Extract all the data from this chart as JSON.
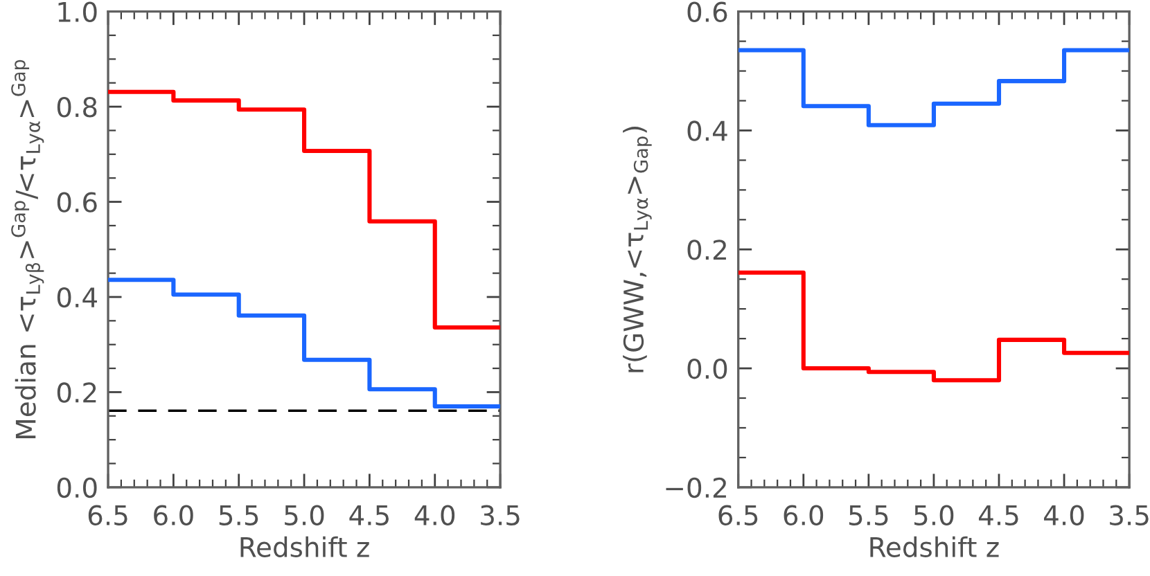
{
  "chart_data": [
    {
      "type": "step",
      "xlabel": "Redshift z",
      "ylabel": "Median <τ$_{Lyβ}$>$^{Gap}$/<τ$_{Lyα}$>$^{Gap}$",
      "xlim": [
        6.5,
        3.5
      ],
      "ylim": [
        0,
        1.0
      ],
      "xticks": [
        6.5,
        {
          "value": 6.0,
          "label": "6.0"
        },
        5.5,
        {
          "value": 5.0,
          "label": "5.0"
        },
        4.5,
        {
          "value": 4.0,
          "label": "4.0"
        },
        3.5,
        {
          "value": 6.4,
          "label": null
        },
        {
          "value": 6.3,
          "label": null
        },
        {
          "value": 6.2,
          "label": null
        },
        {
          "value": 6.1,
          "label": null
        },
        {
          "value": 5.9,
          "label": null
        },
        {
          "value": 5.8,
          "label": null
        },
        {
          "value": 5.7,
          "label": null
        },
        {
          "value": 5.6,
          "label": null
        },
        {
          "value": 5.4,
          "label": null
        },
        {
          "value": 5.3,
          "label": null
        },
        {
          "value": 5.2,
          "label": null
        },
        {
          "value": 5.1,
          "label": null
        },
        {
          "value": 4.9,
          "label": null
        },
        {
          "value": 4.8,
          "label": null
        },
        {
          "value": 4.7,
          "label": null
        },
        {
          "value": 4.6,
          "label": null
        },
        {
          "value": 4.4,
          "label": null
        },
        {
          "value": 4.3,
          "label": null
        },
        {
          "value": 4.2,
          "label": null
        },
        {
          "value": 4.1,
          "label": null
        },
        {
          "value": 3.9,
          "label": null
        },
        {
          "value": 3.8,
          "label": null
        },
        {
          "value": 3.7,
          "label": null
        },
        {
          "value": 3.6,
          "label": null
        }
      ],
      "yticks": [
        {
          "value": 0,
          "label": "0.0"
        },
        0.2,
        0.4,
        0.6,
        0.8,
        {
          "value": 1,
          "label": "1.0"
        },
        {
          "value": 0.05,
          "label": null
        },
        {
          "value": 0.1,
          "label": null
        },
        {
          "value": 0.15,
          "label": null
        },
        {
          "value": 0.25,
          "label": null
        },
        {
          "value": 0.3,
          "label": null
        },
        {
          "value": 0.35,
          "label": null
        },
        {
          "value": 0.45,
          "label": null
        },
        {
          "value": 0.5,
          "label": null
        },
        {
          "value": 0.55,
          "label": null
        },
        {
          "value": 0.65,
          "label": null
        },
        {
          "value": 0.7,
          "label": null
        },
        {
          "value": 0.75,
          "label": null
        },
        {
          "value": 0.85,
          "label": null
        },
        {
          "value": 0.9,
          "label": null
        },
        {
          "value": 0.95,
          "label": null
        }
      ],
      "series": [
        {
          "color": "#ff0000",
          "x": [
            6.5,
            6.0,
            5.5,
            5.0,
            4.5,
            4.0,
            3.5
          ],
          "values": [
            0.831,
            0.813,
            0.794,
            0.707,
            0.559,
            0.336,
            0.336
          ]
        },
        {
          "color": "#1a66ff",
          "x": [
            6.5,
            6.0,
            5.5,
            5.0,
            4.5,
            4.0,
            3.5
          ],
          "values": [
            0.436,
            0.405,
            0.361,
            0.268,
            0.206,
            0.17,
            0.17
          ]
        }
      ],
      "ref_lines": [
        {
          "axis": "y",
          "value": 0.161,
          "color": "#000000",
          "line_style": "dashed"
        }
      ]
    },
    {
      "type": "step",
      "xlabel": "Redshift z",
      "ylabel": "r(GWW,<τ$_{Lyα}$>$_{Gap}$)",
      "xlim": [
        6.5,
        3.5
      ],
      "ylim": [
        -0.2,
        0.6
      ],
      "xticks": [
        6.5,
        {
          "value": 6.0,
          "label": "6.0"
        },
        5.5,
        {
          "value": 5.0,
          "label": "5.0"
        },
        4.5,
        {
          "value": 4.0,
          "label": "4.0"
        },
        3.5,
        {
          "value": 6.4,
          "label": null
        },
        {
          "value": 6.3,
          "label": null
        },
        {
          "value": 6.2,
          "label": null
        },
        {
          "value": 6.1,
          "label": null
        },
        {
          "value": 5.9,
          "label": null
        },
        {
          "value": 5.8,
          "label": null
        },
        {
          "value": 5.7,
          "label": null
        },
        {
          "value": 5.6,
          "label": null
        },
        {
          "value": 5.4,
          "label": null
        },
        {
          "value": 5.3,
          "label": null
        },
        {
          "value": 5.2,
          "label": null
        },
        {
          "value": 5.1,
          "label": null
        },
        {
          "value": 4.9,
          "label": null
        },
        {
          "value": 4.8,
          "label": null
        },
        {
          "value": 4.7,
          "label": null
        },
        {
          "value": 4.6,
          "label": null
        },
        {
          "value": 4.4,
          "label": null
        },
        {
          "value": 4.3,
          "label": null
        },
        {
          "value": 4.2,
          "label": null
        },
        {
          "value": 4.1,
          "label": null
        },
        {
          "value": 3.9,
          "label": null
        },
        {
          "value": 3.8,
          "label": null
        },
        {
          "value": 3.7,
          "label": null
        },
        {
          "value": 3.6,
          "label": null
        }
      ],
      "yticks": [
        {
          "value": -0.2,
          "label": "−0.2"
        },
        {
          "value": 0,
          "label": "0.0"
        },
        0.2,
        0.4,
        0.6,
        {
          "value": -0.15,
          "label": null
        },
        {
          "value": -0.1,
          "label": null
        },
        {
          "value": -0.05,
          "label": null
        },
        {
          "value": 0.05,
          "label": null
        },
        {
          "value": 0.1,
          "label": null
        },
        {
          "value": 0.15,
          "label": null
        },
        {
          "value": 0.25,
          "label": null
        },
        {
          "value": 0.3,
          "label": null
        },
        {
          "value": 0.35,
          "label": null
        },
        {
          "value": 0.45,
          "label": null
        },
        {
          "value": 0.5,
          "label": null
        },
        {
          "value": 0.55,
          "label": null
        }
      ],
      "series": [
        {
          "color": "#1a66ff",
          "x": [
            6.5,
            6.0,
            5.5,
            5.0,
            4.5,
            4.0,
            3.5
          ],
          "values": [
            0.535,
            0.441,
            0.409,
            0.445,
            0.483,
            0.535,
            0.535
          ]
        },
        {
          "color": "#ff0000",
          "x": [
            6.5,
            6.0,
            5.5,
            5.0,
            4.5,
            4.0,
            3.5
          ],
          "values": [
            0.161,
            0.0,
            -0.006,
            -0.02,
            0.048,
            0.026,
            0.026
          ]
        }
      ]
    }
  ]
}
